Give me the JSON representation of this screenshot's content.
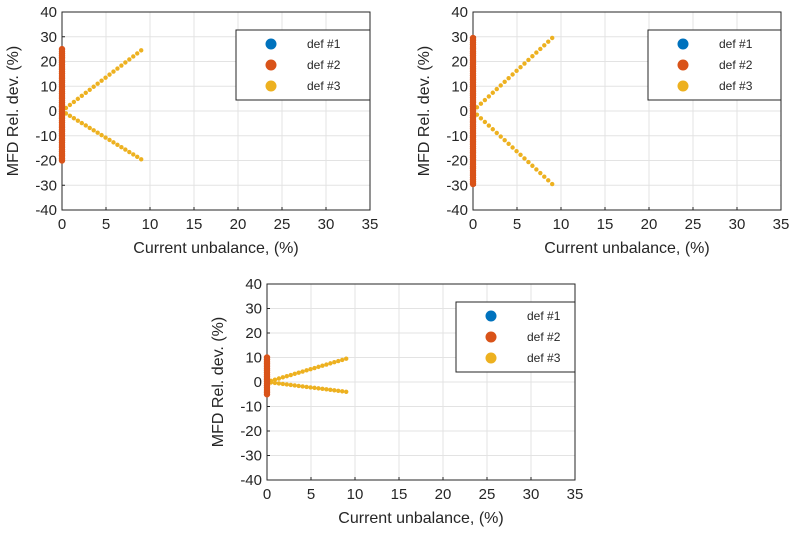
{
  "chart_data": [
    {
      "type": "scatter",
      "xlabel": "Current unbalance, (%)",
      "ylabel": "MFD Rel. dev. (%)",
      "xlim": [
        0,
        35
      ],
      "ylim": [
        -40,
        40
      ],
      "xticks": [
        0,
        5,
        10,
        15,
        20,
        25,
        30,
        35
      ],
      "yticks": [
        40,
        30,
        20,
        10,
        0,
        -10,
        -20,
        -30,
        -40
      ],
      "grid": true,
      "legend": "top-right",
      "series": [
        {
          "name": "def #1",
          "color": "#0072BD",
          "x": [
            0
          ],
          "y": [
            0
          ]
        },
        {
          "name": "def #2",
          "color": "#D95319",
          "x": [
            0
          ],
          "y_range": [
            -20,
            25
          ]
        },
        {
          "name": "def #3",
          "color": "#EDB120",
          "x_range": [
            0,
            9
          ],
          "upper_end": 24.5,
          "lower_end": -19.5
        }
      ]
    },
    {
      "type": "scatter",
      "xlabel": "Current unbalance, (%)",
      "ylabel": "MFD Rel. dev. (%)",
      "xlim": [
        0,
        35
      ],
      "ylim": [
        -40,
        40
      ],
      "xticks": [
        0,
        5,
        10,
        15,
        20,
        25,
        30,
        35
      ],
      "yticks": [
        40,
        30,
        20,
        10,
        0,
        -10,
        -20,
        -30,
        -40
      ],
      "grid": true,
      "legend": "top-right",
      "series": [
        {
          "name": "def #1",
          "color": "#0072BD",
          "x": [
            0
          ],
          "y": [
            0
          ]
        },
        {
          "name": "def #2",
          "color": "#D95319",
          "x": [
            0
          ],
          "y_range": [
            -29.5,
            29.5
          ]
        },
        {
          "name": "def #3",
          "color": "#EDB120",
          "x_range": [
            0,
            9
          ],
          "upper_end": 29.5,
          "lower_end": -29.5
        }
      ]
    },
    {
      "type": "scatter",
      "xlabel": "Current unbalance, (%)",
      "ylabel": "MFD Rel. dev. (%)",
      "xlim": [
        0,
        35
      ],
      "ylim": [
        -40,
        40
      ],
      "xticks": [
        0,
        5,
        10,
        15,
        20,
        25,
        30,
        35
      ],
      "yticks": [
        40,
        30,
        20,
        10,
        0,
        -10,
        -20,
        -30,
        -40
      ],
      "grid": true,
      "legend": "top-right",
      "series": [
        {
          "name": "def #1",
          "color": "#0072BD",
          "x": [
            0
          ],
          "y": [
            0
          ]
        },
        {
          "name": "def #2",
          "color": "#D95319",
          "x": [
            0
          ],
          "y_range": [
            -5,
            10
          ]
        },
        {
          "name": "def #3",
          "color": "#EDB120",
          "x_range": [
            0,
            9
          ],
          "upper_end": 9.5,
          "lower_end": -4
        }
      ]
    }
  ]
}
